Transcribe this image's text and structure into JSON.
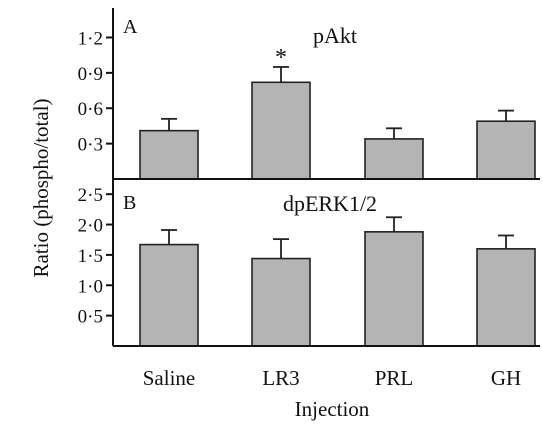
{
  "chart_data": [
    {
      "type": "bar",
      "panel": "A",
      "title": "pAkt",
      "categories": [
        "Saline",
        "LR3",
        "PRL",
        "GH"
      ],
      "values": [
        0.41,
        0.82,
        0.34,
        0.49
      ],
      "errors": [
        0.1,
        0.13,
        0.09,
        0.09
      ],
      "significance": [
        "",
        "*",
        "",
        ""
      ],
      "yticks": [
        "0·3",
        "0·6",
        "0·9",
        "1·2"
      ],
      "ylim": [
        0,
        1.45
      ]
    },
    {
      "type": "bar",
      "panel": "B",
      "title": "dpERK1/2",
      "categories": [
        "Saline",
        "LR3",
        "PRL",
        "GH"
      ],
      "values": [
        1.67,
        1.44,
        1.88,
        1.6
      ],
      "errors": [
        0.24,
        0.32,
        0.24,
        0.22
      ],
      "significance": [
        "",
        "",
        "",
        ""
      ],
      "yticks": [
        "0·5",
        "1·0",
        "1·5",
        "2·0",
        "2·5"
      ],
      "ylim": [
        0,
        2.75
      ]
    }
  ],
  "ylabel": "Ratio  (phospho/total)",
  "xlabel": "Injection"
}
